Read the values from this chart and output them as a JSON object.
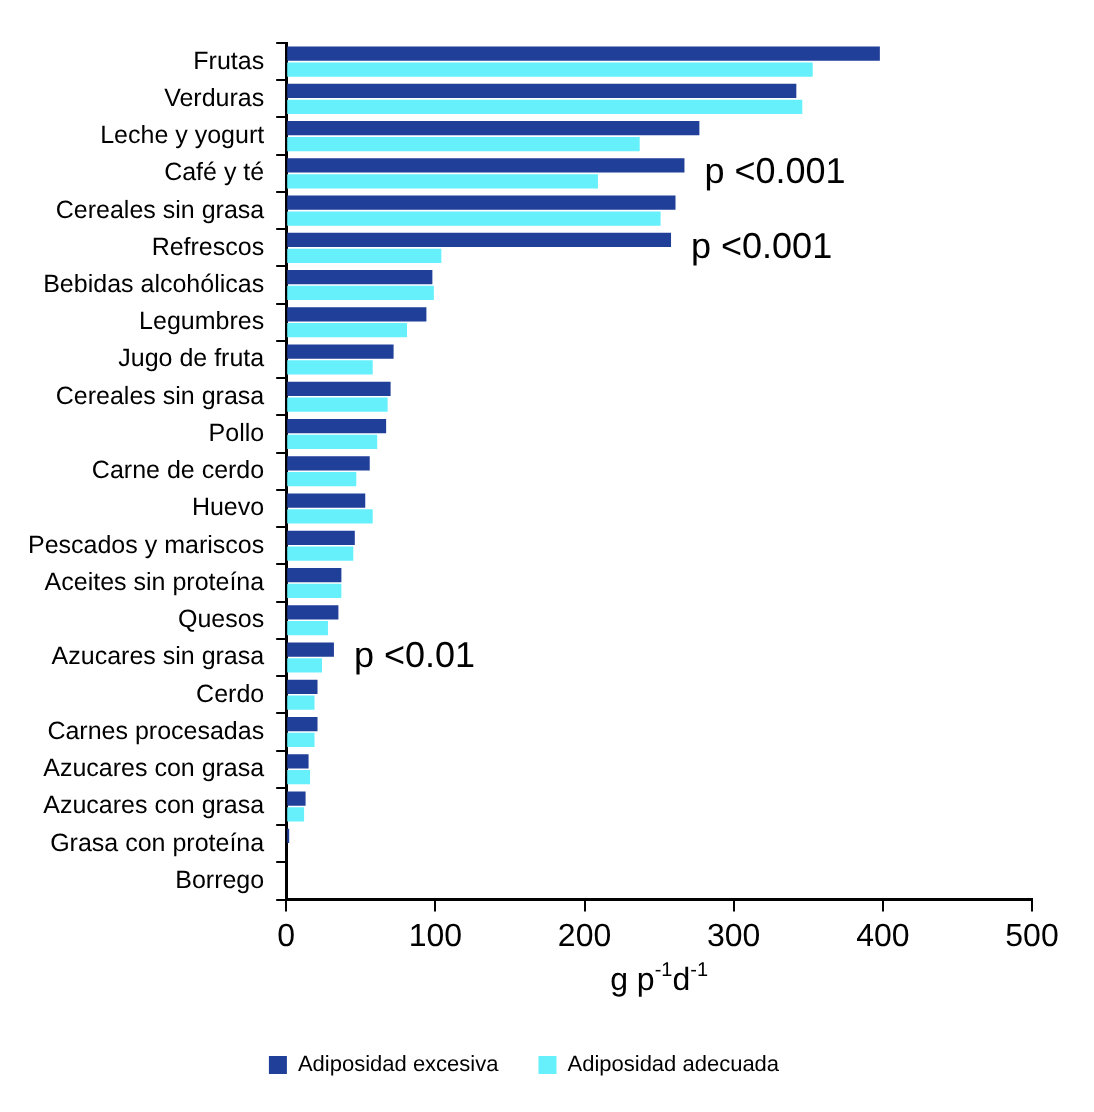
{
  "chart_data": {
    "type": "bar",
    "orientation": "horizontal",
    "xlabel": "g p$^{-1}$d$^{-1}$",
    "categories": [
      "Frutas",
      "Verduras",
      "Leche y yogurt",
      "Café y té",
      "Cereales sin grasa",
      "Refrescos",
      "Bebidas alcohólicas",
      "Legumbres",
      "Jugo de fruta",
      "Cereales sin grasa",
      "Pollo",
      "Carne de cerdo",
      "Huevo",
      "Pescados y mariscos",
      "Aceites sin proteína",
      "Quesos",
      "Azucares sin grasa",
      "Cerdo",
      "Carnes procesadas",
      "Azucares con grasa",
      "Azucares con grasa",
      "Grasa con proteína",
      "Borrego"
    ],
    "series": [
      {
        "name": "Adiposidad excesiva",
        "color": "#1f3f99",
        "values": [
          398,
          342,
          277,
          267,
          261,
          258,
          98,
          94,
          72,
          70,
          67,
          56,
          53,
          46,
          37,
          35,
          32,
          21,
          21,
          15,
          13,
          2,
          null
        ]
      },
      {
        "name": "Adiposidad adecuada",
        "color": "#66f0fb",
        "values": [
          353,
          346,
          237,
          209,
          251,
          104,
          99,
          81,
          58,
          68,
          61,
          47,
          58,
          45,
          37,
          28,
          24,
          19,
          19,
          16,
          12,
          null,
          null
        ]
      }
    ],
    "xlim": [
      0,
      500
    ],
    "xticks": [
      0,
      100,
      200,
      300,
      400,
      500
    ],
    "grid": false,
    "legend": "bottom",
    "annotations": [
      {
        "text": "p <0.001",
        "x": 267,
        "y": "Café y té"
      },
      {
        "text": "p <0.001",
        "x": 258,
        "y": "Refrescos"
      },
      {
        "text": "p <0.01",
        "x": 32,
        "y": "Azucares sin grasa"
      }
    ]
  }
}
